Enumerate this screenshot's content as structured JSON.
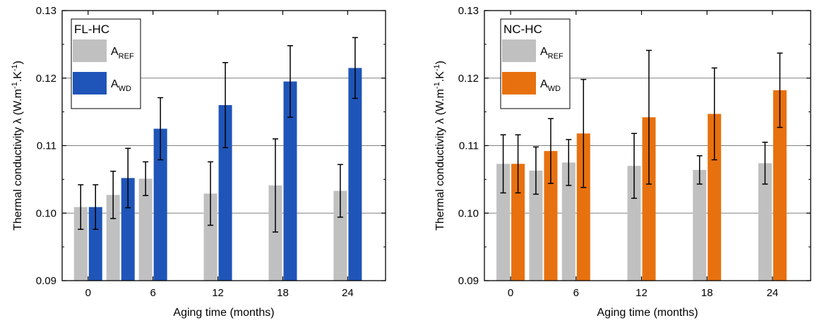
{
  "chart_data": [
    {
      "type": "bar",
      "legend_title": "FL-HC",
      "xlabel": "Aging time (months)",
      "ylabel_prefix": "Thermal conductivity λ (W.m",
      "ylabel_exp1": "-1",
      "ylabel_mid": ".K",
      "ylabel_exp2": "-1",
      "ylabel_suffix": ")",
      "ylim": [
        0.09,
        0.13
      ],
      "yticks": [
        "0.09",
        "0.10",
        "0.11",
        "0.12",
        "0.13"
      ],
      "ytick_values": [
        0.09,
        0.1,
        0.11,
        0.12,
        0.13
      ],
      "xlim": [
        -2.4,
        27.5
      ],
      "x": [
        0,
        3,
        6,
        12,
        18,
        24
      ],
      "xtick_labels": [
        "0",
        "6",
        "12",
        "18",
        "24"
      ],
      "xtick_values": [
        0,
        6,
        12,
        18,
        24
      ],
      "grid": "horizontal",
      "legend_placement": "top-left",
      "series": [
        {
          "label_main": "A",
          "label_sub": "REF",
          "color": "#c0c0c0",
          "values": [
            0.1009,
            0.1027,
            0.1051,
            0.1029,
            0.1041,
            0.1033
          ],
          "errors": [
            0.0033,
            0.0035,
            0.0025,
            0.0047,
            0.0069,
            0.0039
          ]
        },
        {
          "label_main": "A",
          "label_sub": "WD",
          "color": "#1f55b8",
          "values": [
            0.1009,
            0.1052,
            0.1125,
            0.116,
            0.1195,
            0.1215
          ],
          "errors": [
            0.0033,
            0.0044,
            0.0046,
            0.0063,
            0.0053,
            0.0045
          ]
        }
      ]
    },
    {
      "type": "bar",
      "legend_title": "NC-HC",
      "xlabel": "Aging time (months)",
      "ylabel_prefix": "Thermal conductivity λ (W.m",
      "ylabel_exp1": "-1",
      "ylabel_mid": ".K",
      "ylabel_exp2": "-1",
      "ylabel_suffix": ")",
      "ylim": [
        0.09,
        0.13
      ],
      "yticks": [
        "0.09",
        "0.10",
        "0.11",
        "0.12",
        "0.13"
      ],
      "ytick_values": [
        0.09,
        0.1,
        0.11,
        0.12,
        0.13
      ],
      "xlim": [
        -2.4,
        27.5
      ],
      "x": [
        0,
        3,
        6,
        12,
        18,
        24
      ],
      "xtick_labels": [
        "0",
        "6",
        "12",
        "18",
        "24"
      ],
      "xtick_values": [
        0,
        6,
        12,
        18,
        24
      ],
      "grid": "horizontal",
      "legend_placement": "top-left",
      "series": [
        {
          "label_main": "A",
          "label_sub": "REF",
          "color": "#c0c0c0",
          "values": [
            0.1073,
            0.1063,
            0.1075,
            0.107,
            0.1064,
            0.1074
          ],
          "errors": [
            0.0043,
            0.0035,
            0.0034,
            0.0048,
            0.0021,
            0.0031
          ]
        },
        {
          "label_main": "A",
          "label_sub": "WD",
          "color": "#e8710f",
          "values": [
            0.1073,
            0.1092,
            0.1118,
            0.1142,
            0.1147,
            0.1182
          ],
          "errors": [
            0.0043,
            0.0048,
            0.008,
            0.0099,
            0.0068,
            0.0055
          ]
        }
      ]
    }
  ]
}
